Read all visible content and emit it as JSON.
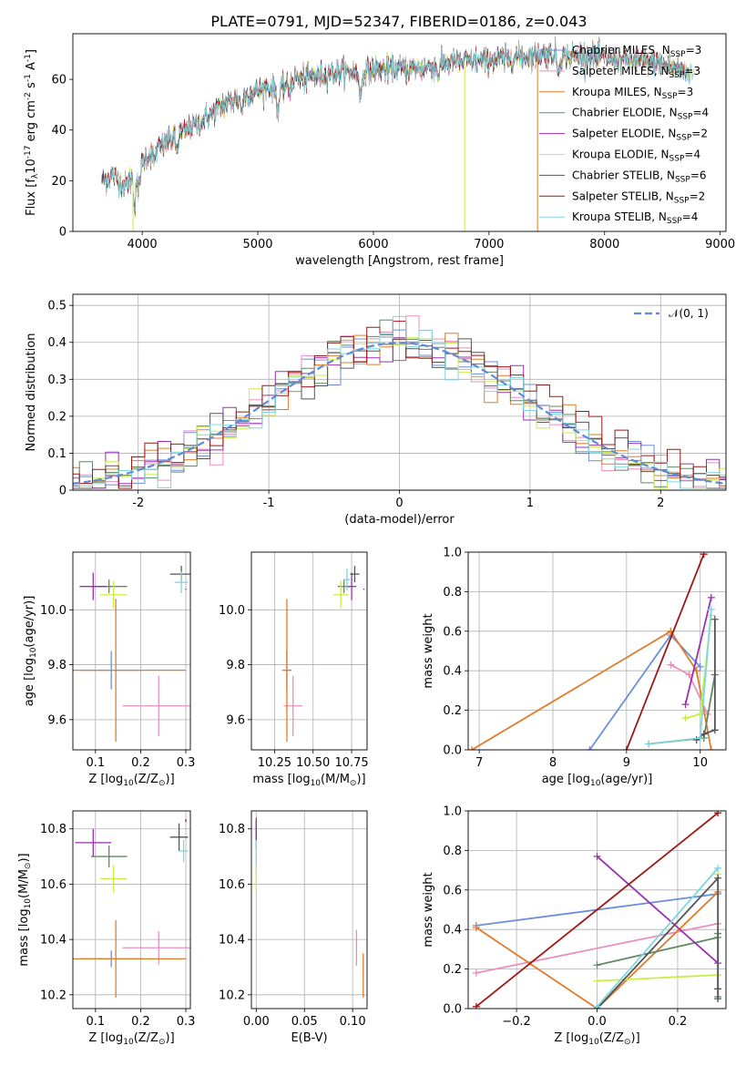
{
  "figure": {
    "title": "PLATE=0791, MJD=52347, FIBERID=0186, z=0.043"
  },
  "colors": {
    "c1": "#6a8fd8",
    "c2": "#e88fc0",
    "c3": "#e07b2a",
    "c4": "#5f8a63",
    "c5": "#9b30b0",
    "c6": "#c9ec4a",
    "c7": "#555555",
    "c8": "#a01717",
    "c9": "#7fd6e0",
    "normal": "#5f8ad8"
  },
  "chart_data": [
    {
      "id": "spectrum",
      "type": "line",
      "xlabel": "wavelength [Angstrom, rest frame]",
      "ylabel": "Flux [f$_\\lambda$10$^{-17}$ erg cm$^{-2}$ s$^{-1}$ A$^{-1}$]",
      "xlim": [
        3400,
        9050
      ],
      "ylim": [
        0,
        78
      ],
      "xticks": [
        4000,
        5000,
        6000,
        7000,
        8000,
        9000
      ],
      "yticks": [
        0,
        20,
        40,
        60
      ],
      "legend_position": "upper right",
      "series": [
        {
          "name": "Chabrier MILES, N$_{SSP}$=3",
          "color": "#6a8fd8"
        },
        {
          "name": "Salpeter MILES, N$_{SSP}$=3",
          "color": "#e88fc0"
        },
        {
          "name": "Kroupa MILES, N$_{SSP}$=3",
          "color": "#e07b2a"
        },
        {
          "name": "Chabrier ELODIE, N$_{SSP}$=4",
          "color": "#5f8a63"
        },
        {
          "name": "Salpeter ELODIE, N$_{SSP}$=2",
          "color": "#9b30b0"
        },
        {
          "name": "Kroupa ELODIE, N$_{SSP}$=4",
          "color": "#c9ec4a"
        },
        {
          "name": "Chabrier STELIB, N$_{SSP}$=6",
          "color": "#555555"
        },
        {
          "name": "Salpeter STELIB, N$_{SSP}$=2",
          "color": "#a01717"
        },
        {
          "name": "Kroupa STELIB, N$_{SSP}$=4",
          "color": "#7fd6e0"
        }
      ],
      "continuum": {
        "x": [
          3650,
          3750,
          3850,
          3950,
          4050,
          4200,
          4350,
          4500,
          4700,
          4900,
          5100,
          5200,
          5300,
          5500,
          5700,
          5900,
          6100,
          6300,
          6500,
          6700,
          6900,
          7100,
          7300,
          7500,
          7700,
          7900,
          8100,
          8300,
          8500,
          8700
        ],
        "y": [
          20,
          22,
          18,
          24,
          30,
          35,
          39,
          43,
          50,
          54,
          57,
          56,
          60,
          61,
          63,
          63,
          64,
          64,
          65,
          67,
          67,
          68,
          69,
          70,
          69,
          69,
          68,
          67,
          66,
          63
        ]
      }
    },
    {
      "id": "residuals",
      "type": "step",
      "xlabel": "(data-model)/error",
      "ylabel": "Normed distribution",
      "xlim": [
        -2.5,
        2.5
      ],
      "ylim": [
        0,
        0.53
      ],
      "xticks": [
        -2,
        -1,
        0,
        1,
        2
      ],
      "yticks": [
        0.0,
        0.1,
        0.2,
        0.3,
        0.4,
        0.5
      ],
      "legend": "$\\mathcal{N}(0,1)$",
      "bin_width": 0.1
    },
    {
      "id": "age-vs-Z",
      "type": "errorbar",
      "xlabel": "Z [log$_{10}$(Z/Z$_\\odot$)]",
      "ylabel": "age  [log$_{10}$(age/yr)]",
      "xlim": [
        0.05,
        0.31
      ],
      "ylim": [
        9.49,
        10.21
      ],
      "xticks": [
        0.1,
        0.2,
        0.3
      ],
      "yticks": [
        9.6,
        9.8,
        10.0
      ],
      "points": [
        {
          "x": 0.135,
          "y": 9.78,
          "xerr": 0.07,
          "yerr": 0.07,
          "color": "#6a8fd8"
        },
        {
          "x": 0.24,
          "y": 9.65,
          "xerr": 0.08,
          "yerr": 0.11,
          "color": "#e88fc0"
        },
        {
          "x": 0.145,
          "y": 9.78,
          "xerr": 0.155,
          "yerr": 0.26,
          "color": "#e07b2a"
        },
        {
          "x": 0.13,
          "y": 10.085,
          "xerr": 0.04,
          "yerr": 0.025,
          "color": "#5f8a63"
        },
        {
          "x": 0.095,
          "y": 10.085,
          "xerr": 0.03,
          "yerr": 0.05,
          "color": "#9b30b0"
        },
        {
          "x": 0.14,
          "y": 10.055,
          "xerr": 0.03,
          "yerr": 0.05,
          "color": "#c9ec4a"
        },
        {
          "x": 0.29,
          "y": 10.13,
          "xerr": 0.025,
          "yerr": 0.03,
          "color": "#555555"
        },
        {
          "x": 0.3,
          "y": 10.075,
          "xerr": 0.0,
          "yerr": 0.002,
          "color": "#a01717"
        },
        {
          "x": 0.29,
          "y": 10.1,
          "xerr": 0.015,
          "yerr": 0.04,
          "color": "#7fd6e0"
        }
      ]
    },
    {
      "id": "age-vs-mass",
      "type": "errorbar",
      "xlabel": "mass [log$_{10}$(M/M$_\\odot$)]",
      "xlim": [
        10.1,
        10.85
      ],
      "ylim": [
        9.49,
        10.21
      ],
      "xticks": [
        10.25,
        10.5,
        10.75
      ],
      "yticks": [
        9.6,
        9.8,
        10.0
      ],
      "points": [
        {
          "x": 10.33,
          "y": 9.78,
          "xerr": 0.03,
          "yerr": 0.07,
          "color": "#6a8fd8"
        },
        {
          "x": 10.37,
          "y": 9.65,
          "xerr": 0.06,
          "yerr": 0.11,
          "color": "#e88fc0"
        },
        {
          "x": 10.33,
          "y": 9.78,
          "xerr": 0.03,
          "yerr": 0.26,
          "color": "#e07b2a"
        },
        {
          "x": 10.7,
          "y": 10.085,
          "xerr": 0.04,
          "yerr": 0.025,
          "color": "#5f8a63"
        },
        {
          "x": 10.75,
          "y": 10.085,
          "xerr": 0.03,
          "yerr": 0.05,
          "color": "#9b30b0"
        },
        {
          "x": 10.68,
          "y": 10.055,
          "xerr": 0.05,
          "yerr": 0.05,
          "color": "#c9ec4a"
        },
        {
          "x": 10.77,
          "y": 10.13,
          "xerr": 0.03,
          "yerr": 0.03,
          "color": "#555555"
        },
        {
          "x": 10.83,
          "y": 10.075,
          "xerr": 0.0,
          "yerr": 0.002,
          "color": "#a01717"
        },
        {
          "x": 10.72,
          "y": 10.11,
          "xerr": 0.02,
          "yerr": 0.04,
          "color": "#7fd6e0"
        }
      ]
    },
    {
      "id": "weight-vs-age",
      "type": "line",
      "xlabel": "age  [log$_{10}$(age/yr)]",
      "ylabel": "mass weight",
      "xlim": [
        6.85,
        10.35
      ],
      "ylim": [
        0,
        1.0
      ],
      "xticks": [
        7,
        8,
        9,
        10
      ],
      "yticks": [
        0.0,
        0.2,
        0.4,
        0.6,
        0.8,
        1.0
      ],
      "series": [
        {
          "color": "#6a8fd8",
          "x": [
            8.5,
            9.6,
            10.0
          ],
          "y": [
            0.0,
            0.58,
            0.42
          ]
        },
        {
          "color": "#e88fc0",
          "x": [
            9.6,
            9.85,
            10.1
          ],
          "y": [
            0.43,
            0.38,
            0.18
          ]
        },
        {
          "color": "#e07b2a",
          "x": [
            6.9,
            9.6,
            9.95,
            10.15
          ],
          "y": [
            0.0,
            0.6,
            0.4,
            0.0
          ]
        },
        {
          "color": "#5f8a63",
          "x": [
            9.3,
            10.05,
            10.2
          ],
          "y": [
            0.03,
            0.06,
            0.38
          ]
        },
        {
          "color": "#9b30b0",
          "x": [
            9.8,
            10.15
          ],
          "y": [
            0.23,
            0.77
          ]
        },
        {
          "color": "#c9ec4a",
          "x": [
            9.8,
            10.0,
            10.15
          ],
          "y": [
            0.16,
            0.18,
            0.68
          ]
        },
        {
          "color": "#555555",
          "x": [
            9.95,
            10.05,
            10.2,
            10.2
          ],
          "y": [
            0.05,
            0.08,
            0.1,
            0.66
          ]
        },
        {
          "color": "#a01717",
          "x": [
            9.0,
            10.05
          ],
          "y": [
            0.0,
            0.99
          ]
        },
        {
          "color": "#7fd6e0",
          "x": [
            9.3,
            10.0,
            10.15
          ],
          "y": [
            0.03,
            0.06,
            0.71
          ]
        }
      ]
    },
    {
      "id": "mass-vs-Z",
      "type": "errorbar",
      "xlabel": "Z [log$_{10}$(Z/Z$_\\odot$)]",
      "ylabel": "mass [log$_{10}$(M/M$_\\odot$)]",
      "xlim": [
        0.05,
        0.31
      ],
      "ylim": [
        10.15,
        10.865
      ],
      "xticks": [
        0.1,
        0.2,
        0.3
      ],
      "yticks": [
        10.2,
        10.4,
        10.6,
        10.8
      ],
      "points": [
        {
          "x": 0.135,
          "y": 10.33,
          "xerr": 0.07,
          "yerr": 0.03,
          "color": "#6a8fd8"
        },
        {
          "x": 0.24,
          "y": 10.37,
          "xerr": 0.08,
          "yerr": 0.06,
          "color": "#e88fc0"
        },
        {
          "x": 0.145,
          "y": 10.33,
          "xerr": 0.155,
          "yerr": 0.14,
          "color": "#e07b2a"
        },
        {
          "x": 0.13,
          "y": 10.7,
          "xerr": 0.04,
          "yerr": 0.04,
          "color": "#5f8a63"
        },
        {
          "x": 0.095,
          "y": 10.75,
          "xerr": 0.04,
          "yerr": 0.05,
          "color": "#9b30b0"
        },
        {
          "x": 0.14,
          "y": 10.62,
          "xerr": 0.03,
          "yerr": 0.05,
          "color": "#c9ec4a"
        },
        {
          "x": 0.285,
          "y": 10.77,
          "xerr": 0.02,
          "yerr": 0.05,
          "color": "#555555"
        },
        {
          "x": 0.3,
          "y": 10.83,
          "xerr": 0.0,
          "yerr": 0.005,
          "color": "#a01717"
        },
        {
          "x": 0.295,
          "y": 10.72,
          "xerr": 0.01,
          "yerr": 0.04,
          "color": "#7fd6e0"
        }
      ]
    },
    {
      "id": "mass-vs-ebv",
      "type": "errorbar",
      "xlabel": "E(B-V)",
      "xlim": [
        -0.005,
        0.115
      ],
      "ylim": [
        10.15,
        10.865
      ],
      "xticks": [
        0.0,
        0.05,
        0.1
      ],
      "yticks": [
        10.2,
        10.4,
        10.6,
        10.8
      ],
      "points": [
        {
          "x": 0.0,
          "y": 10.78,
          "xerr": 0.0,
          "yerr": 0.05,
          "color": "#555555"
        },
        {
          "x": 0.0,
          "y": 10.7,
          "xerr": 0.0,
          "yerr": 0.06,
          "color": "#7fd6e0"
        },
        {
          "x": 0.0,
          "y": 10.62,
          "xerr": 0.0,
          "yerr": 0.05,
          "color": "#c9ec4a"
        },
        {
          "x": 0.0,
          "y": 10.8,
          "xerr": 0.0,
          "yerr": 0.04,
          "color": "#9b30b0"
        },
        {
          "x": 0.104,
          "y": 10.37,
          "xerr": 0.0,
          "yerr": 0.065,
          "color": "#e88fc0"
        },
        {
          "x": 0.111,
          "y": 10.27,
          "xerr": 0.0,
          "yerr": 0.08,
          "color": "#e07b2a"
        }
      ]
    },
    {
      "id": "weight-vs-Z",
      "type": "line",
      "xlabel": "Z [log$_{10}$(Z/Z$_\\odot$)]",
      "ylabel": "mass weight",
      "xlim": [
        -0.32,
        0.32
      ],
      "ylim": [
        0,
        1.0
      ],
      "xticks": [
        -0.2,
        0.0,
        0.2
      ],
      "yticks": [
        0.0,
        0.2,
        0.4,
        0.6,
        0.8,
        1.0
      ],
      "series": [
        {
          "color": "#6a8fd8",
          "x": [
            -0.3,
            0.3
          ],
          "y": [
            0.42,
            0.58
          ]
        },
        {
          "color": "#e88fc0",
          "x": [
            -0.3,
            0.3
          ],
          "y": [
            0.18,
            0.43
          ]
        },
        {
          "color": "#e07b2a",
          "x": [
            -0.3,
            0.0,
            0.3
          ],
          "y": [
            0.41,
            0.0,
            0.59
          ]
        },
        {
          "color": "#5f8a63",
          "x": [
            0.0,
            0.3,
            0.3,
            0.3
          ],
          "y": [
            0.22,
            0.36,
            0.06,
            0.38
          ]
        },
        {
          "color": "#9b30b0",
          "x": [
            0.0,
            0.3
          ],
          "y": [
            0.77,
            0.23
          ]
        },
        {
          "color": "#c9ec4a",
          "x": [
            0.0,
            0.3,
            0.3
          ],
          "y": [
            0.14,
            0.17,
            0.68
          ]
        },
        {
          "color": "#555555",
          "x": [
            0.0,
            0.3,
            0.3,
            0.3
          ],
          "y": [
            0.0,
            0.66,
            0.05,
            0.1
          ]
        },
        {
          "color": "#a01717",
          "x": [
            -0.3,
            0.3
          ],
          "y": [
            0.01,
            0.99
          ]
        },
        {
          "color": "#7fd6e0",
          "x": [
            0.0,
            0.3
          ],
          "y": [
            0.01,
            0.71
          ]
        }
      ]
    }
  ]
}
